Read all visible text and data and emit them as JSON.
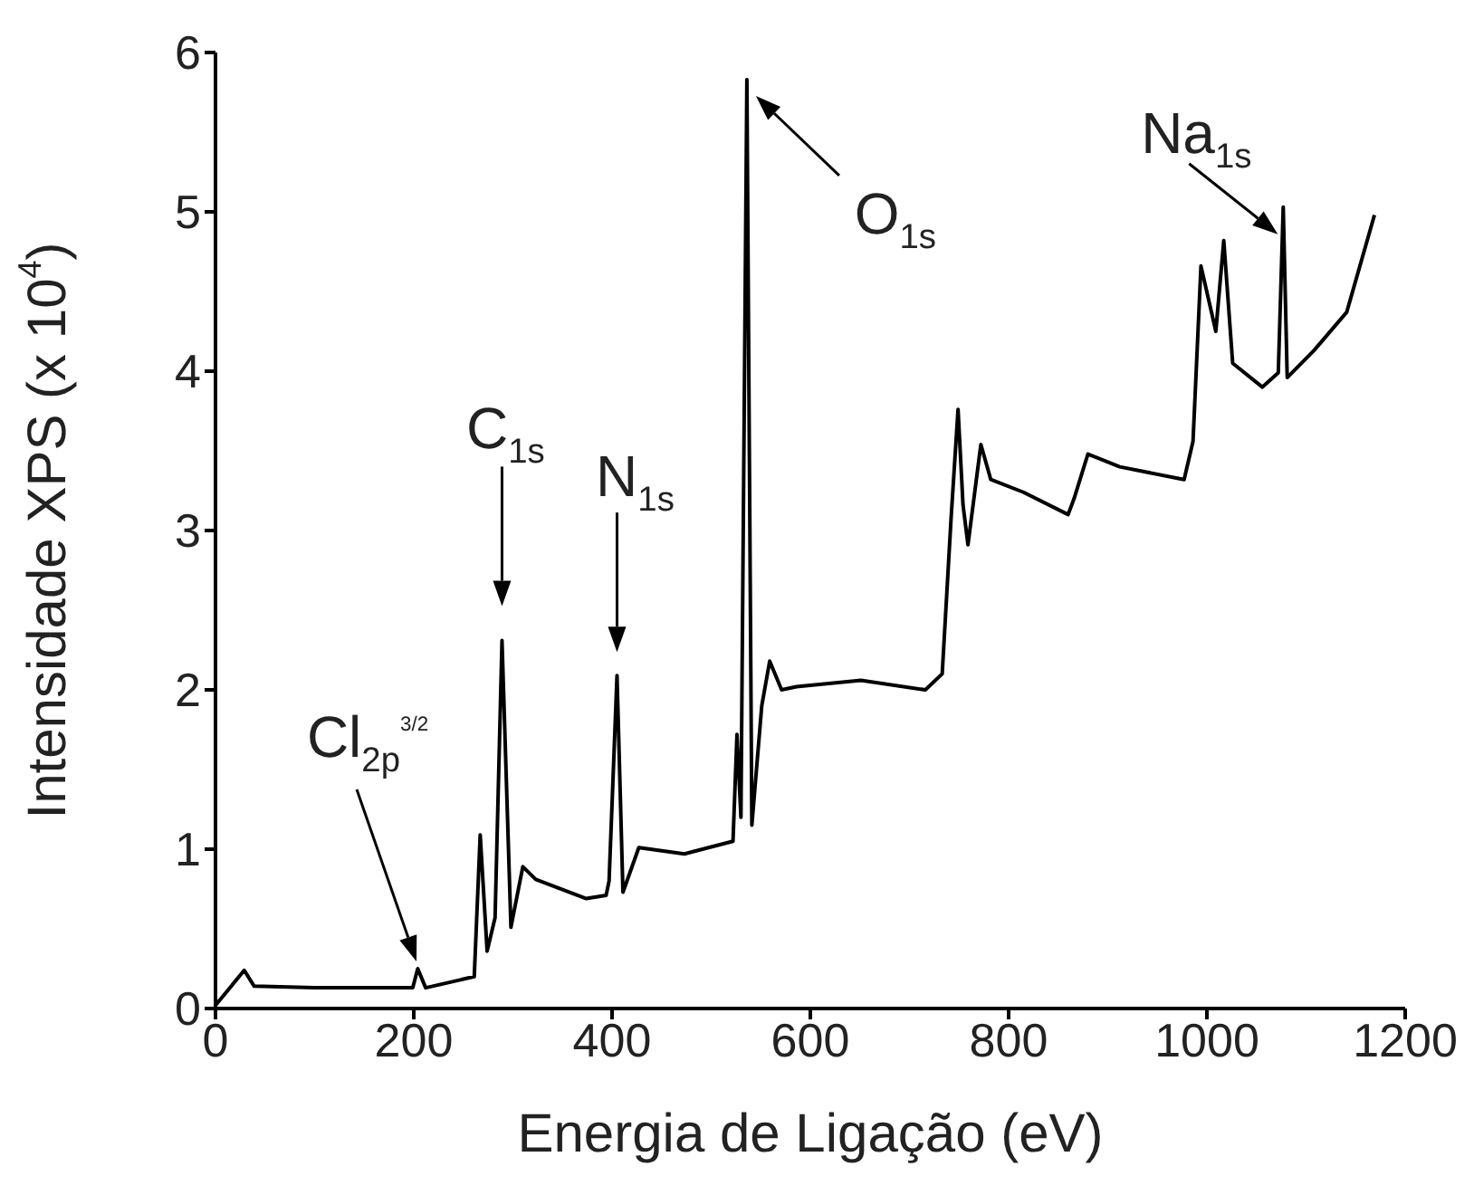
{
  "chart_data": {
    "type": "line",
    "xlabel": "Energia de Ligação (eV)",
    "ylabel": "Intensidade XPS (x 10$^{4}$)",
    "xlim": [
      0,
      1200
    ],
    "xticks": [
      0,
      200,
      400,
      600,
      800,
      1000,
      1200
    ],
    "ylim": [
      0,
      6
    ],
    "yticks": [
      0,
      1,
      2,
      3,
      4,
      5,
      6
    ],
    "grid": false,
    "legend": false,
    "marker": "none",
    "line_style": "solid",
    "series": [
      {
        "color": "#000000",
        "x": [
          0,
          29,
          39,
          100,
          150,
          199,
          204,
          212,
          261,
          267,
          274,
          282,
          289,
          298,
          310,
          323,
          374,
          394,
          397,
          405,
          411,
          427,
          473,
          522,
          526,
          530,
          536,
          541,
          551,
          559,
          571,
          586,
          651,
          716,
          733,
          742,
          749,
          754,
          759,
          772,
          782,
          815,
          860,
          866,
          880,
          912,
          977,
          986,
          994,
          1009,
          1017,
          1026,
          1056,
          1072,
          1077,
          1081,
          1108,
          1141,
          1169
        ],
        "values": [
          0.02,
          0.24,
          0.14,
          0.13,
          0.13,
          0.13,
          0.25,
          0.13,
          0.2,
          1.09,
          0.36,
          0.57,
          2.31,
          0.51,
          0.89,
          0.81,
          0.69,
          0.71,
          0.8,
          2.09,
          0.73,
          1.01,
          0.97,
          1.05,
          1.72,
          1.2,
          5.83,
          1.15,
          1.9,
          2.18,
          2.0,
          2.02,
          2.06,
          2.0,
          2.1,
          3.08,
          3.76,
          3.16,
          2.91,
          3.54,
          3.32,
          3.24,
          3.1,
          3.2,
          3.48,
          3.4,
          3.32,
          3.56,
          4.66,
          4.25,
          4.82,
          4.05,
          3.9,
          3.99,
          5.03,
          3.96,
          4.13,
          4.37,
          4.98
        ]
      }
    ],
    "annotations": [
      "Cl$_{2p}$$^{3/2}$",
      {
        "text": "C$_{1s}$",
        "x": 289,
        "y": 2.31
      },
      {
        "text": "N$_{1s}$",
        "x": 405,
        "y": 2.09
      },
      {
        "text": "O$_{1s}$",
        "x": 536,
        "y": 5.83
      },
      {
        "text": "Na$_{1s}$",
        "x": 1077,
        "y": 5.03
      }
    ]
  }
}
